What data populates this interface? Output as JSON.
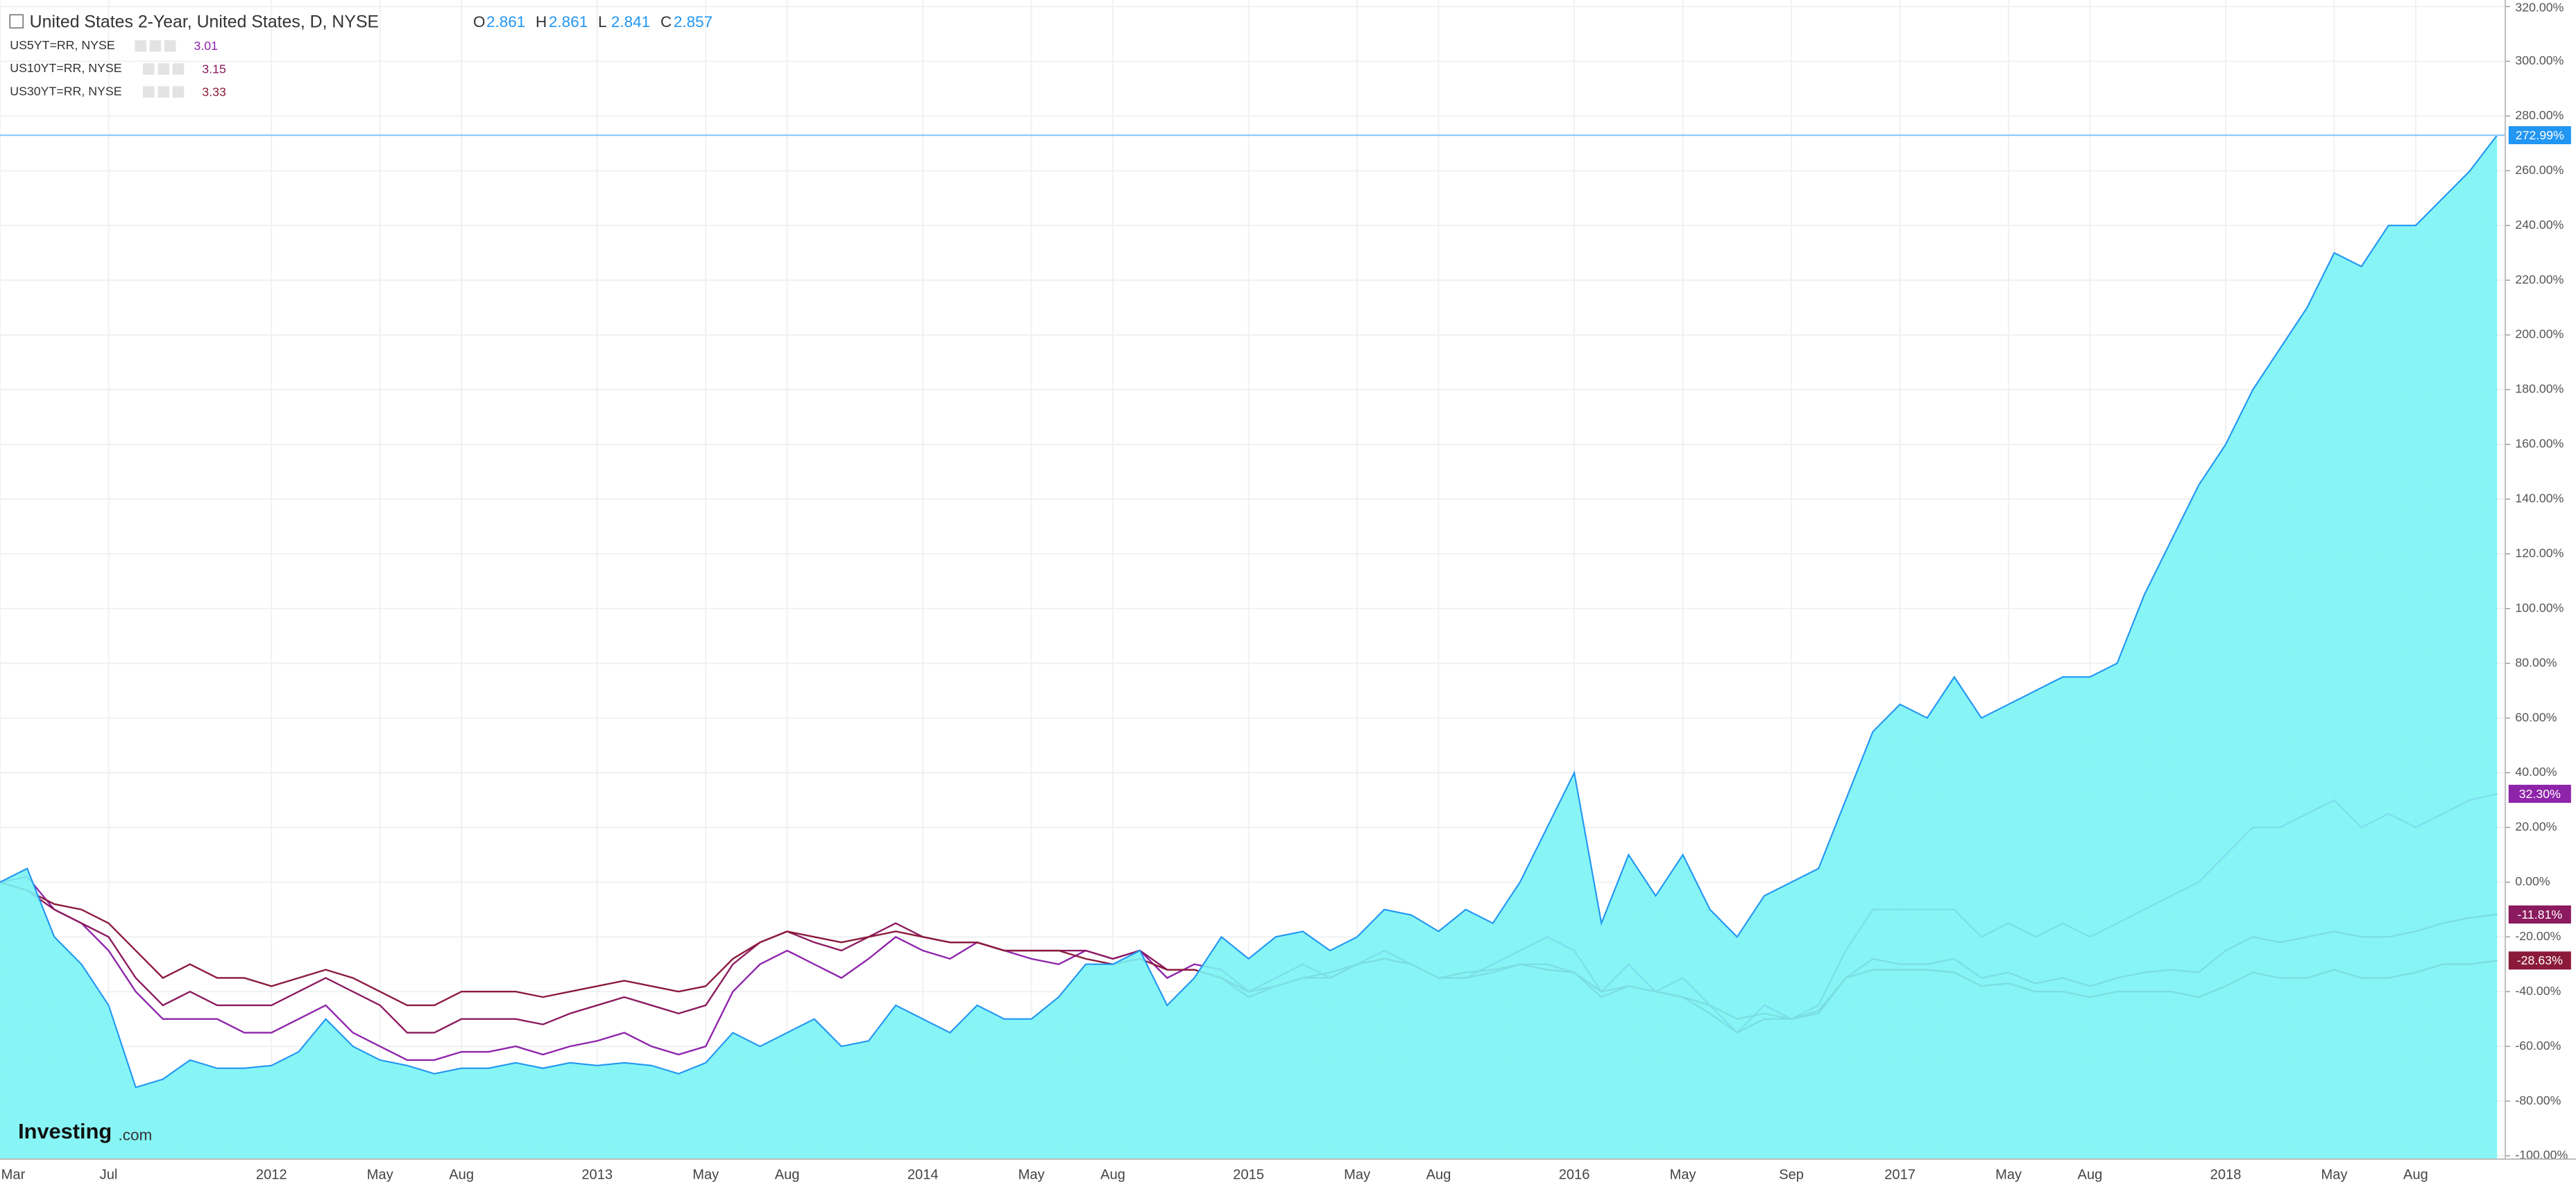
{
  "chart_data": {
    "type": "area-line",
    "title": "United States 2-Year, United States, D, NYSE",
    "ohlc": [
      {
        "name": "O",
        "value": 2.861
      },
      {
        "name": "H",
        "value": 2.861
      },
      {
        "name": "L",
        "value": 2.841
      },
      {
        "name": "C",
        "value": 2.857
      }
    ],
    "watermark": {
      "brand": "Investing",
      "suffix": ".com"
    },
    "categories": [
      "Mar",
      null,
      null,
      null,
      "Jul",
      null,
      null,
      null,
      null,
      null,
      "2012",
      null,
      null,
      null,
      "May",
      null,
      null,
      "Aug",
      null,
      null,
      null,
      null,
      "2013",
      null,
      null,
      null,
      "May",
      null,
      null,
      "Aug",
      null,
      null,
      null,
      null,
      "2014",
      null,
      null,
      null,
      "May",
      null,
      null,
      "Aug",
      null,
      null,
      null,
      null,
      "2015",
      null,
      null,
      null,
      "May",
      null,
      null,
      "Aug",
      null,
      null,
      null,
      null,
      "2016",
      null,
      null,
      null,
      "May",
      null,
      null,
      null,
      "Sep",
      null,
      null,
      null,
      "2017",
      null,
      null,
      null,
      "May",
      null,
      null,
      "Aug",
      null,
      null,
      null,
      null,
      "2018",
      null,
      null,
      null,
      "May",
      null,
      null,
      "Aug",
      null,
      null,
      null
    ],
    "series": [
      {
        "name": "United States 2-Year, United States, D, NYSE",
        "style": "area",
        "color": "#2196f3",
        "last_value_label": "272.99%",
        "values": [
          0,
          5,
          -20,
          -30,
          -45,
          -75,
          -72,
          -65,
          -68,
          -68,
          -67,
          -62,
          -50,
          -60,
          -65,
          -67,
          -70,
          -68,
          -68,
          -66,
          -68,
          -66,
          -67,
          -66,
          -67,
          -70,
          -66,
          -55,
          -60,
          -55,
          -50,
          -60,
          -58,
          -45,
          -50,
          -55,
          -45,
          -50,
          -50,
          -42,
          -30,
          -30,
          -25,
          -45,
          -35,
          -20,
          -28,
          -20,
          -18,
          -25,
          -20,
          -10,
          -12,
          -18,
          -10,
          -15,
          0,
          20,
          40,
          -15,
          10,
          -5,
          10,
          -10,
          -20,
          -5,
          0,
          5,
          30,
          55,
          65,
          60,
          75,
          60,
          65,
          70,
          75,
          75,
          80,
          105,
          125,
          145,
          160,
          180,
          195,
          210,
          230,
          225,
          240,
          240,
          250,
          260,
          272.99
        ]
      },
      {
        "name": "US5YT=RR, NYSE",
        "style": "line",
        "color": "#8e24aa",
        "last": 3.01,
        "last_value_label": "32.30%",
        "values": [
          0,
          2,
          -10,
          -15,
          -25,
          -40,
          -50,
          -50,
          -50,
          -55,
          -55,
          -50,
          -45,
          -55,
          -60,
          -65,
          -65,
          -62,
          -62,
          -60,
          -63,
          -60,
          -58,
          -55,
          -60,
          -63,
          -60,
          -40,
          -30,
          -25,
          -30,
          -35,
          -28,
          -20,
          -25,
          -28,
          -22,
          -25,
          -28,
          -30,
          -25,
          -28,
          -25,
          -35,
          -30,
          -32,
          -40,
          -35,
          -30,
          -35,
          -30,
          -25,
          -30,
          -35,
          -35,
          -30,
          -25,
          -20,
          -25,
          -40,
          -30,
          -40,
          -35,
          -45,
          -55,
          -45,
          -50,
          -45,
          -25,
          -10,
          -10,
          -10,
          -10,
          -20,
          -15,
          -20,
          -15,
          -20,
          -15,
          -10,
          -5,
          0,
          10,
          20,
          20,
          25,
          30,
          20,
          25,
          20,
          25,
          30,
          32.3
        ]
      },
      {
        "name": "US10YT=RR, NYSE",
        "style": "line",
        "color": "#8b1a5e",
        "last": 3.15,
        "last_value_label": "-11.81%",
        "values": [
          0,
          -3,
          -10,
          -15,
          -20,
          -35,
          -45,
          -40,
          -45,
          -45,
          -45,
          -40,
          -35,
          -40,
          -45,
          -55,
          -55,
          -50,
          -50,
          -50,
          -52,
          -48,
          -45,
          -42,
          -45,
          -48,
          -45,
          -30,
          -22,
          -18,
          -22,
          -25,
          -20,
          -15,
          -20,
          -22,
          -22,
          -25,
          -25,
          -25,
          -25,
          -28,
          -25,
          -32,
          -32,
          -35,
          -42,
          -38,
          -35,
          -35,
          -30,
          -28,
          -30,
          -35,
          -35,
          -33,
          -30,
          -30,
          -33,
          -42,
          -38,
          -40,
          -42,
          -48,
          -55,
          -50,
          -50,
          -48,
          -35,
          -28,
          -30,
          -30,
          -28,
          -35,
          -33,
          -37,
          -35,
          -38,
          -35,
          -33,
          -32,
          -33,
          -25,
          -20,
          -22,
          -20,
          -18,
          -20,
          -20,
          -18,
          -15,
          -13,
          -11.81
        ]
      },
      {
        "name": "US30YT=RR, NYSE",
        "style": "line",
        "color": "#8b1a3a",
        "last": 3.33,
        "last_value_label": "-28.63%",
        "values": [
          0,
          -3,
          -8,
          -10,
          -15,
          -25,
          -35,
          -30,
          -35,
          -35,
          -38,
          -35,
          -32,
          -35,
          -40,
          -45,
          -45,
          -40,
          -40,
          -40,
          -42,
          -40,
          -38,
          -36,
          -38,
          -40,
          -38,
          -28,
          -22,
          -18,
          -20,
          -22,
          -20,
          -18,
          -20,
          -22,
          -22,
          -25,
          -25,
          -25,
          -28,
          -30,
          -28,
          -32,
          -32,
          -35,
          -40,
          -38,
          -35,
          -33,
          -30,
          -28,
          -30,
          -35,
          -33,
          -32,
          -30,
          -32,
          -33,
          -40,
          -38,
          -40,
          -42,
          -45,
          -50,
          -48,
          -50,
          -47,
          -35,
          -32,
          -32,
          -32,
          -33,
          -38,
          -37,
          -40,
          -40,
          -42,
          -40,
          -40,
          -40,
          -42,
          -38,
          -33,
          -35,
          -35,
          -32,
          -35,
          -35,
          -33,
          -30,
          -30,
          -28.63
        ]
      }
    ],
    "ylim": [
      -100,
      320
    ],
    "yticks": [
      {
        "value": -100,
        "label": "-100.00%"
      },
      {
        "value": -80,
        "label": "-80.00%"
      },
      {
        "value": -60,
        "label": "-60.00%"
      },
      {
        "value": -40,
        "label": "-40.00%"
      },
      {
        "value": -20,
        "label": "-20.00%"
      },
      {
        "value": 0,
        "label": "0.00%"
      },
      {
        "value": 20,
        "label": "20.00%"
      },
      {
        "value": 40,
        "label": "40.00%"
      },
      {
        "value": 60,
        "label": "60.00%"
      },
      {
        "value": 80,
        "label": "80.00%"
      },
      {
        "value": 100,
        "label": "100.00%"
      },
      {
        "value": 120,
        "label": "120.00%"
      },
      {
        "value": 140,
        "label": "140.00%"
      },
      {
        "value": 160,
        "label": "160.00%"
      },
      {
        "value": 180,
        "label": "180.00%"
      },
      {
        "value": 200,
        "label": "200.00%"
      },
      {
        "value": 220,
        "label": "220.00%"
      },
      {
        "value": 240,
        "label": "240.00%"
      },
      {
        "value": 260,
        "label": "260.00%"
      },
      {
        "value": 280,
        "label": "280.00%"
      },
      {
        "value": 300,
        "label": "300.00%"
      },
      {
        "value": 320,
        "label": "320.00%"
      }
    ],
    "grid": true
  }
}
